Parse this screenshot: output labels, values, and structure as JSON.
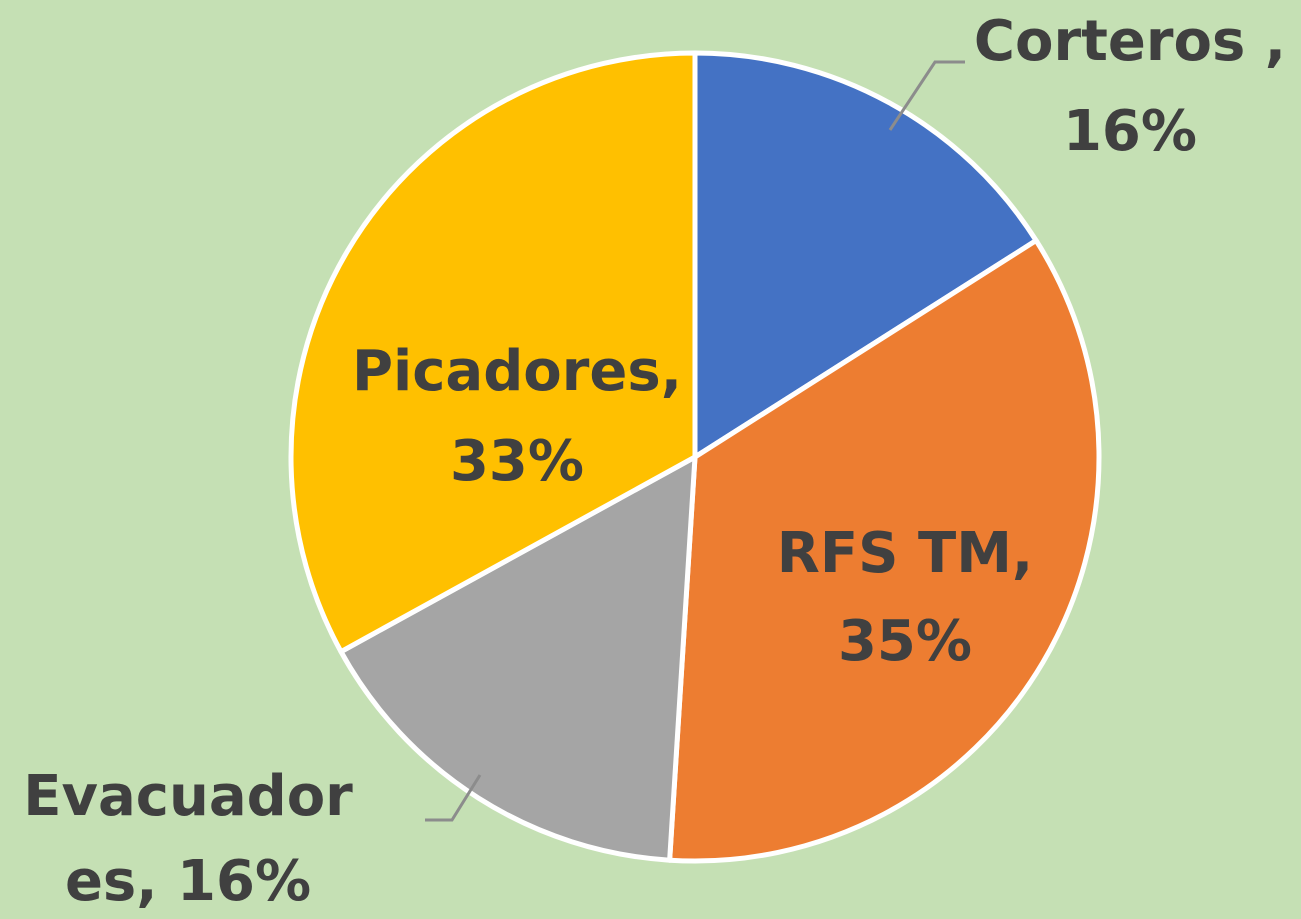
{
  "chart_data": {
    "type": "pie",
    "values": [
      16,
      35,
      16,
      33
    ],
    "value_labels": [
      "Corteros ,\n16%",
      "RFS TM,\n35%",
      "Evacuador\nes, 16%",
      "Picadores,\n33%"
    ],
    "colors": [
      "#4472c4",
      "#ed7d31",
      "#a5a5a5",
      "#ffc000"
    ]
  }
}
